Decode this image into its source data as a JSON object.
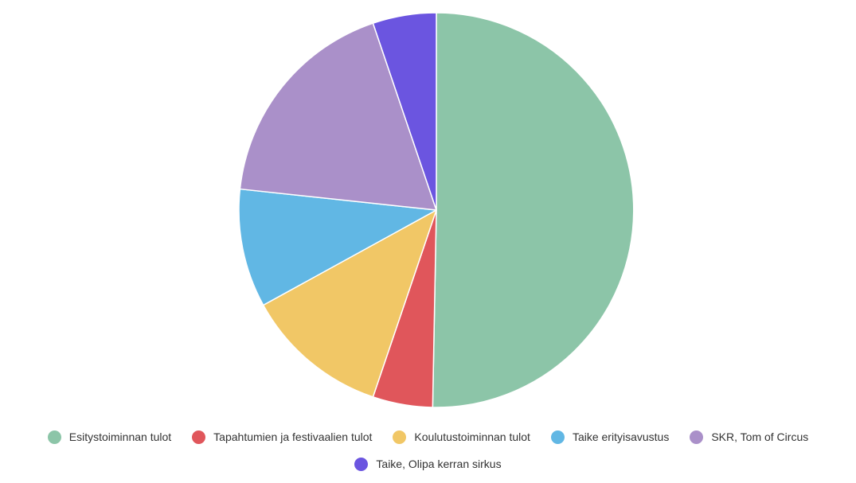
{
  "chart_data": {
    "type": "pie",
    "categories": [
      "Esitystoiminnan tulot",
      "Tapahtumien ja festivaalien tulot",
      "Koulutustoiminnan tulot",
      "Taike erityisavustus",
      "SKR, Tom of Circus",
      "Taike, Olipa kerran sirkus"
    ],
    "values": [
      50.3,
      4.9,
      11.8,
      9.7,
      18.1,
      5.2
    ],
    "colors": [
      "#8CC5A8",
      "#E0565B",
      "#F1C766",
      "#61B7E4",
      "#AA90C9",
      "#6B55E0"
    ],
    "start_angle_deg": 0,
    "direction": "clockwise",
    "legend_position": "bottom",
    "legend_marker": "circle"
  }
}
